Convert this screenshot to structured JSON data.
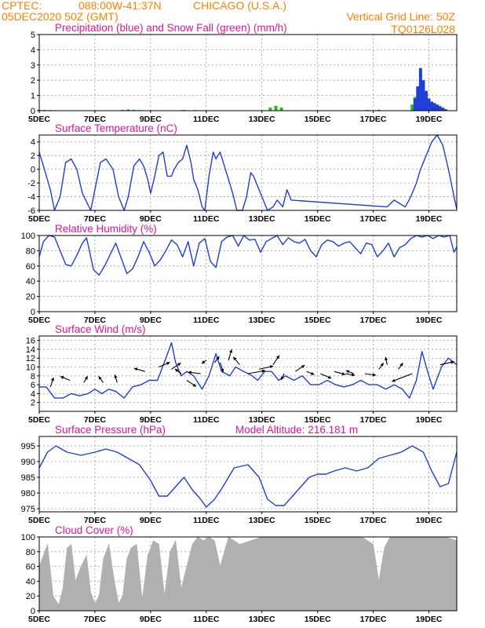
{
  "header": {
    "source": "CPTEC:",
    "coords": "088:00W-41:37N",
    "city": "CHICAGO (U.S.A.)",
    "date": "05DEC2020 50Z (GMT)",
    "grid_note": "Vertical Grid Line: 50Z",
    "code": "TQ0126L028"
  },
  "colors": {
    "title": "#e0139b",
    "header": "#ff8000",
    "line": "#1f3fd8",
    "snow": "#18c018",
    "cloud": "#b0b0b0",
    "grid": "#9a9a9a"
  },
  "chart_data": [
    {
      "type": "bar",
      "title": "Precipitation (blue) and Snow Fall (green) (mm/h)",
      "x_ticks": [
        "5DEC",
        "7DEC",
        "9DEC",
        "11DEC",
        "13DEC",
        "15DEC",
        "17DEC",
        "19DEC"
      ],
      "xlim": [
        5,
        20
      ],
      "ylim": [
        0,
        5
      ],
      "y_ticks": [
        0,
        1,
        2,
        3,
        4,
        5
      ],
      "grid": true,
      "series": [
        {
          "name": "Snow Fall",
          "color": "green",
          "x": [
            5.0,
            5.2,
            5.4,
            5.6,
            8.0,
            8.2,
            8.4,
            8.6,
            10.2,
            10.6,
            13.3,
            13.5,
            13.7,
            16.8,
            17.2,
            18.4,
            18.5,
            18.6,
            18.7,
            18.8,
            18.9,
            19.0,
            19.2
          ],
          "values": [
            0.05,
            0.05,
            0.04,
            0.03,
            0.06,
            0.08,
            0.06,
            0.04,
            0.05,
            0.04,
            0.2,
            0.32,
            0.2,
            0.05,
            0.06,
            0.4,
            0.9,
            1.5,
            2.0,
            1.6,
            1.0,
            0.5,
            0.15
          ]
        },
        {
          "name": "Precipitation",
          "color": "blue",
          "x": [
            18.5,
            18.6,
            18.7,
            18.8,
            18.9,
            19.0,
            19.1,
            19.2,
            19.3,
            19.4,
            19.5,
            19.6
          ],
          "values": [
            0.8,
            1.6,
            2.8,
            2.0,
            1.3,
            0.8,
            0.6,
            0.5,
            0.4,
            0.3,
            0.2,
            0.1
          ]
        }
      ]
    },
    {
      "type": "line",
      "title": "Surface Temperature (nC)",
      "x_ticks": [
        "5DEC",
        "7DEC",
        "9DEC",
        "11DEC",
        "13DEC",
        "15DEC",
        "17DEC",
        "19DEC"
      ],
      "xlim": [
        5,
        20
      ],
      "ylim": [
        -6,
        5
      ],
      "y_ticks": [
        -6,
        -4,
        -2,
        0,
        2,
        4
      ],
      "grid": true,
      "series": [
        {
          "name": "Temperature",
          "x": [
            5.0,
            5.15,
            5.4,
            5.55,
            5.75,
            5.95,
            6.15,
            6.35,
            6.55,
            6.85,
            7.0,
            7.2,
            7.4,
            7.65,
            7.85,
            8.05,
            8.2,
            8.4,
            8.6,
            8.75,
            8.9,
            9.0,
            9.15,
            9.3,
            9.45,
            9.6,
            9.75,
            9.85,
            10.0,
            10.15,
            10.3,
            10.45,
            10.55,
            10.7,
            10.85,
            10.95,
            11.1,
            11.25,
            11.35,
            11.5,
            11.65,
            11.8,
            11.95,
            12.1,
            12.3,
            12.45,
            12.6,
            12.7,
            13.2,
            13.4,
            13.55,
            13.75,
            13.9,
            14.05,
            17.5,
            17.75,
            17.95,
            18.15,
            18.35,
            18.55,
            18.7,
            18.9,
            19.1,
            19.3,
            19.5,
            19.7,
            19.9,
            20.0
          ],
          "values": [
            2.5,
            0.5,
            -3.0,
            -6.0,
            -4.0,
            1.0,
            1.5,
            0.0,
            -3.5,
            -6.0,
            -3.0,
            1.0,
            1.5,
            0.0,
            -4.0,
            -6.0,
            -4.0,
            0.5,
            1.5,
            0.5,
            -1.5,
            -3.5,
            -1.0,
            2.0,
            2.5,
            -1.0,
            -1.0,
            0.0,
            1.0,
            1.5,
            3.5,
            1.0,
            -1.5,
            -3.0,
            -5.5,
            -6.0,
            -1.0,
            2.5,
            1.5,
            2.5,
            0.5,
            -1.5,
            -3.5,
            -6.0,
            -6.0,
            -4.0,
            -0.5,
            -1.0,
            -6.0,
            -5.5,
            -4.5,
            -5.5,
            -3.0,
            -4.5,
            -5.5,
            -4.5,
            -5.0,
            -5.5,
            -4.0,
            -2.0,
            0.0,
            2.0,
            4.0,
            5.0,
            3.5,
            0.0,
            -4.0,
            -5.8
          ]
        }
      ]
    },
    {
      "type": "line",
      "title": "Relative Humidity (%)",
      "x_ticks": [
        "5DEC",
        "7DEC",
        "9DEC",
        "11DEC",
        "13DEC",
        "15DEC",
        "17DEC",
        "19DEC"
      ],
      "xlim": [
        5,
        20
      ],
      "ylim": [
        0,
        100
      ],
      "y_ticks": [
        0,
        20,
        40,
        60,
        80,
        100
      ],
      "grid": true,
      "series": [
        {
          "name": "Humidity",
          "x": [
            5.0,
            5.15,
            5.35,
            5.55,
            5.75,
            5.95,
            6.15,
            6.35,
            6.55,
            6.7,
            6.95,
            7.15,
            7.35,
            7.55,
            7.75,
            7.95,
            8.15,
            8.35,
            8.55,
            8.75,
            8.95,
            9.15,
            9.35,
            9.55,
            9.75,
            9.95,
            10.15,
            10.35,
            10.55,
            10.75,
            10.95,
            11.15,
            11.35,
            11.55,
            11.75,
            11.95,
            12.15,
            12.35,
            12.55,
            12.75,
            12.95,
            13.15,
            13.35,
            13.55,
            13.75,
            13.95,
            14.15,
            14.35,
            14.55,
            14.75,
            14.95,
            15.15,
            15.35,
            15.55,
            15.75,
            15.95,
            16.15,
            16.35,
            16.55,
            16.75,
            16.95,
            17.15,
            17.35,
            17.55,
            17.75,
            17.95,
            18.15,
            18.35,
            18.55,
            18.75,
            18.95,
            19.15,
            19.35,
            19.55,
            19.75,
            19.9,
            20.0
          ],
          "values": [
            72,
            92,
            100,
            98,
            80,
            62,
            60,
            74,
            90,
            97,
            55,
            48,
            60,
            75,
            90,
            70,
            50,
            56,
            72,
            92,
            78,
            60,
            68,
            80,
            94,
            88,
            72,
            92,
            60,
            90,
            96,
            66,
            58,
            92,
            98,
            100,
            86,
            100,
            94,
            95,
            78,
            92,
            96,
            100,
            88,
            97,
            92,
            90,
            95,
            80,
            72,
            88,
            94,
            92,
            86,
            90,
            92,
            84,
            76,
            90,
            88,
            72,
            80,
            90,
            72,
            84,
            88,
            96,
            100,
            98,
            100,
            96,
            100,
            98,
            100,
            78,
            85
          ]
        }
      ]
    },
    {
      "type": "line",
      "title": "Surface Wind (m/s)",
      "x_ticks": [
        "5DEC",
        "7DEC",
        "9DEC",
        "11DEC",
        "13DEC",
        "15DEC",
        "17DEC",
        "19DEC"
      ],
      "xlim": [
        5,
        20
      ],
      "ylim": [
        0,
        17
      ],
      "y_ticks": [
        2,
        4,
        6,
        8,
        10,
        12,
        14,
        16
      ],
      "grid": true,
      "series": [
        {
          "name": "Wind speed",
          "x": [
            5.0,
            5.25,
            5.55,
            5.85,
            6.15,
            6.45,
            6.75,
            7.0,
            7.25,
            7.5,
            7.75,
            8.05,
            8.35,
            8.65,
            8.95,
            9.25,
            9.55,
            9.75,
            9.9,
            10.1,
            10.3,
            10.55,
            10.85,
            11.1,
            11.35,
            11.55,
            11.85,
            12.05,
            12.35,
            12.65,
            12.85,
            13.1,
            13.35,
            13.6,
            13.85,
            14.15,
            14.45,
            14.75,
            15.05,
            15.35,
            15.65,
            15.95,
            16.25,
            16.55,
            16.85,
            17.15,
            17.45,
            17.75,
            18.05,
            18.3,
            18.55,
            18.75,
            18.95,
            19.15,
            19.45,
            19.7,
            19.9,
            20.0
          ],
          "values": [
            5.5,
            5.5,
            3.0,
            3.0,
            4.0,
            3.5,
            4.0,
            5.0,
            4.0,
            5.0,
            4.5,
            3.0,
            5.5,
            6.0,
            7.0,
            7.0,
            12.0,
            15.5,
            11.0,
            8.0,
            9.0,
            8.0,
            5.0,
            8.0,
            13.0,
            9.0,
            8.0,
            10.0,
            9.0,
            8.0,
            7.0,
            9.0,
            9.0,
            7.0,
            8.0,
            7.0,
            8.0,
            6.0,
            6.0,
            7.0,
            6.0,
            5.5,
            6.0,
            7.0,
            6.0,
            6.0,
            5.0,
            6.0,
            5.0,
            3.0,
            7.0,
            13.5,
            9.0,
            5.0,
            10.0,
            12.0,
            11.0,
            10.5
          ]
        }
      ]
    },
    {
      "type": "line",
      "title": "Surface Pressure (hPa)",
      "annotation": "Model Altitude: 216.181 m",
      "x_ticks": [
        "5DEC",
        "7DEC",
        "9DEC",
        "11DEC",
        "13DEC",
        "15DEC",
        "17DEC",
        "19DEC"
      ],
      "xlim": [
        5,
        20
      ],
      "ylim": [
        974,
        998
      ],
      "y_ticks": [
        975,
        980,
        985,
        990,
        995
      ],
      "grid": true,
      "series": [
        {
          "name": "Pressure",
          "x": [
            5.0,
            5.3,
            5.6,
            6.0,
            6.5,
            7.0,
            7.4,
            7.8,
            8.2,
            8.6,
            9.0,
            9.3,
            9.6,
            9.9,
            10.2,
            10.5,
            10.8,
            11.0,
            11.3,
            11.6,
            12.0,
            12.5,
            12.9,
            13.2,
            13.5,
            13.8,
            14.1,
            14.4,
            14.7,
            15.0,
            15.3,
            15.6,
            16.0,
            16.4,
            16.8,
            17.2,
            17.6,
            18.0,
            18.4,
            18.8,
            19.1,
            19.4,
            19.7,
            20.0
          ],
          "values": [
            988,
            993,
            995,
            993,
            992,
            993,
            994,
            993,
            991,
            989,
            984,
            979,
            979,
            982,
            985,
            981,
            978,
            975.5,
            978,
            982,
            988,
            989,
            985,
            978,
            976,
            976,
            979,
            982,
            985,
            986,
            986,
            987,
            988,
            987,
            988,
            991,
            992,
            993,
            995,
            993,
            987,
            982,
            983,
            993
          ]
        }
      ]
    },
    {
      "type": "area",
      "title": "Cloud Cover (%)",
      "x_ticks": [
        "5DEC",
        "7DEC",
        "9DEC",
        "11DEC",
        "13DEC",
        "15DEC",
        "17DEC",
        "19DEC"
      ],
      "xlim": [
        5,
        20
      ],
      "ylim": [
        0,
        100
      ],
      "y_ticks": [
        0,
        20,
        40,
        60,
        80,
        100
      ],
      "grid": true,
      "series": [
        {
          "name": "Cloud cover",
          "x": [
            5.0,
            5.15,
            5.3,
            5.5,
            5.7,
            5.85,
            6.0,
            6.15,
            6.3,
            6.5,
            6.7,
            6.85,
            7.0,
            7.15,
            7.3,
            7.5,
            7.7,
            7.85,
            8.0,
            8.15,
            8.3,
            8.5,
            8.7,
            8.9,
            9.1,
            9.3,
            9.5,
            9.7,
            9.9,
            10.1,
            10.3,
            10.5,
            10.7,
            10.9,
            11.1,
            11.3,
            11.5,
            11.8,
            12.2,
            12.6,
            13.0,
            13.4,
            13.8,
            14.2,
            14.6,
            15.0,
            15.4,
            15.8,
            16.2,
            16.6,
            17.0,
            17.2,
            17.4,
            17.6,
            18.0,
            18.4,
            18.8,
            19.2,
            19.6,
            20.0
          ],
          "values": [
            60,
            75,
            90,
            20,
            8,
            30,
            85,
            90,
            40,
            60,
            75,
            25,
            10,
            20,
            70,
            90,
            40,
            10,
            20,
            70,
            85,
            90,
            15,
            75,
            95,
            90,
            20,
            80,
            95,
            30,
            60,
            90,
            100,
            95,
            100,
            95,
            60,
            100,
            90,
            95,
            100,
            100,
            100,
            100,
            100,
            100,
            100,
            100,
            100,
            100,
            90,
            40,
            85,
            100,
            100,
            100,
            100,
            100,
            100,
            95
          ]
        }
      ]
    }
  ],
  "wind_arrows": [
    {
      "x": 5.4,
      "y": 5.5,
      "dx": 4,
      "dy": -12
    },
    {
      "x": 6.1,
      "y": 7.0,
      "dx": -12,
      "dy": -5
    },
    {
      "x": 6.6,
      "y": 6.5,
      "dx": 5,
      "dy": -8
    },
    {
      "x": 7.3,
      "y": 6.5,
      "dx": -6,
      "dy": -8
    },
    {
      "x": 7.8,
      "y": 6.5,
      "dx": -3,
      "dy": -10
    },
    {
      "x": 8.8,
      "y": 9.0,
      "dx": -14,
      "dy": -4
    },
    {
      "x": 9.3,
      "y": 10.0,
      "dx": 14,
      "dy": -6
    },
    {
      "x": 9.75,
      "y": 9.5,
      "dx": 12,
      "dy": -8
    },
    {
      "x": 10.1,
      "y": 8.5,
      "dx": -8,
      "dy": -6
    },
    {
      "x": 10.3,
      "y": 7.0,
      "dx": 12,
      "dy": 8
    },
    {
      "x": 10.8,
      "y": 8.5,
      "dx": -16,
      "dy": -2
    },
    {
      "x": 11.0,
      "y": 11.5,
      "dx": -6,
      "dy": 4
    },
    {
      "x": 11.3,
      "y": 11.0,
      "dx": 6,
      "dy": -8
    },
    {
      "x": 11.5,
      "y": 11.0,
      "dx": 4,
      "dy": 12
    },
    {
      "x": 11.8,
      "y": 11.5,
      "dx": 4,
      "dy": -14
    },
    {
      "x": 12.2,
      "y": 10.5,
      "dx": -8,
      "dy": -10
    },
    {
      "x": 12.5,
      "y": 8.5,
      "dx": 22,
      "dy": -4
    },
    {
      "x": 12.9,
      "y": 9.5,
      "dx": 18,
      "dy": -4
    },
    {
      "x": 13.4,
      "y": 10.5,
      "dx": 8,
      "dy": -12
    },
    {
      "x": 13.8,
      "y": 8.5,
      "dx": -4,
      "dy": 8
    },
    {
      "x": 14.2,
      "y": 9.0,
      "dx": 12,
      "dy": -8
    },
    {
      "x": 14.6,
      "y": 9.0,
      "dx": 10,
      "dy": 4
    },
    {
      "x": 15.1,
      "y": 8.5,
      "dx": 14,
      "dy": 6
    },
    {
      "x": 15.6,
      "y": 9.0,
      "dx": 14,
      "dy": 4
    },
    {
      "x": 16.0,
      "y": 8.5,
      "dx": 12,
      "dy": 2
    },
    {
      "x": 16.3,
      "y": 8.5,
      "dx": -10,
      "dy": -4
    },
    {
      "x": 16.7,
      "y": 8.5,
      "dx": 14,
      "dy": 2
    },
    {
      "x": 17.2,
      "y": 9.5,
      "dx": 6,
      "dy": -8
    },
    {
      "x": 17.5,
      "y": 10.5,
      "dx": -2,
      "dy": -10
    },
    {
      "x": 17.9,
      "y": 9.5,
      "dx": 6,
      "dy": -8
    },
    {
      "x": 18.4,
      "y": 8.5,
      "dx": -26,
      "dy": 10
    },
    {
      "x": 19.4,
      "y": 10.5,
      "dx": 18,
      "dy": -4
    }
  ]
}
